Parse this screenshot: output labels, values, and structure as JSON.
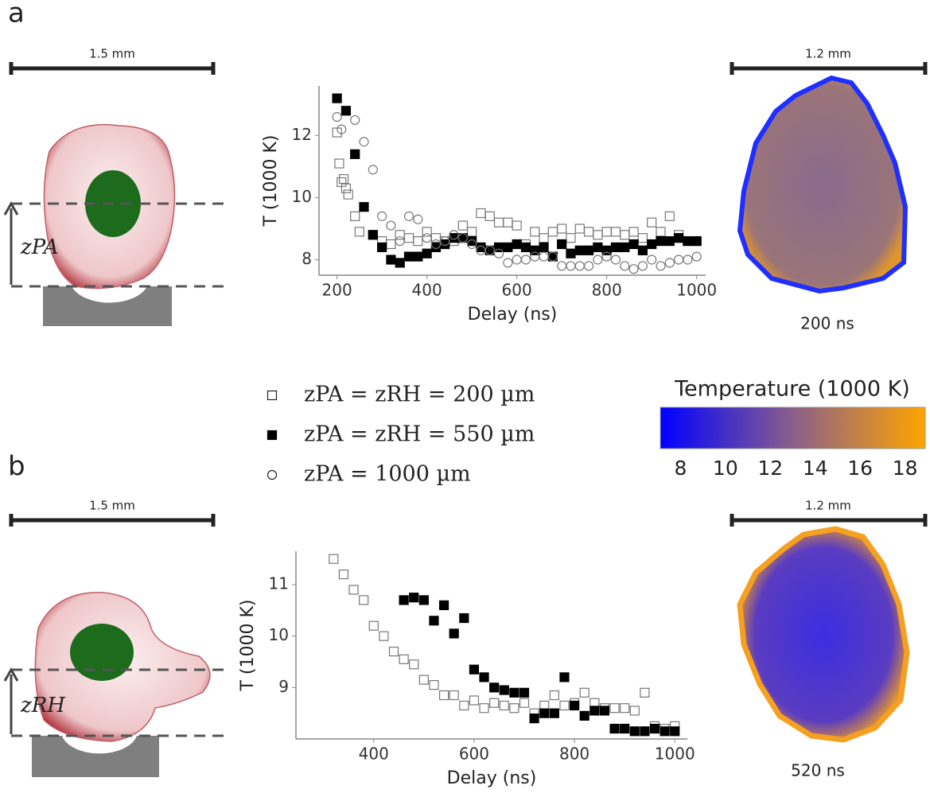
{
  "panels": [
    {
      "label": "a",
      "scale_bar": "1.5 mm",
      "height_label": "zPA",
      "map_scale_bar": "1.2 mm",
      "map_time": "200 ns"
    },
    {
      "label": "b",
      "scale_bar": "1.5 mm",
      "height_label": "zRH",
      "map_scale_bar": "1.2 mm",
      "map_time": "520 ns"
    }
  ],
  "colorbar": {
    "title": "Temperature (1000 K)",
    "lim": [
      7.1,
      18.9
    ],
    "ticks": [
      8,
      10,
      12,
      14,
      16,
      18
    ],
    "colors": [
      "#0000ff",
      "#8a5f8a",
      "#ffa500"
    ]
  },
  "chart_data": [
    {
      "type": "scatter",
      "xlabel": "Delay (ns)",
      "ylabel": "T (1000 K)",
      "xlim": [
        160,
        1020
      ],
      "ylim": [
        7.5,
        13.6
      ],
      "xticks": [
        200,
        400,
        600,
        800,
        1000
      ],
      "yticks": [
        8,
        10,
        12
      ],
      "series": [
        {
          "name": "zPA = zRH = 200 µm",
          "marker": "square-open",
          "color": "#777777",
          "x": [
            200,
            205,
            210,
            215,
            220,
            225,
            240,
            250,
            280,
            300,
            320,
            340,
            360,
            380,
            400,
            420,
            440,
            460,
            480,
            500,
            520,
            540,
            560,
            580,
            600,
            620,
            640,
            660,
            680,
            700,
            720,
            740,
            760,
            780,
            800,
            820,
            840,
            860,
            880,
            900,
            920,
            940,
            960,
            980,
            1000
          ],
          "values": [
            12.1,
            11.1,
            10.5,
            10.6,
            10.3,
            10.1,
            9.4,
            8.9,
            8.8,
            8.6,
            8.5,
            8.8,
            8.7,
            8.6,
            8.9,
            8.7,
            8.6,
            8.6,
            9.1,
            8.9,
            9.5,
            9.4,
            9.2,
            9.2,
            9.1,
            8.5,
            8.9,
            8.7,
            8.9,
            9.0,
            8.7,
            9.0,
            8.9,
            8.8,
            8.9,
            8.9,
            8.8,
            8.9,
            8.7,
            9.2,
            8.9,
            9.4,
            8.8,
            8.6,
            8.6
          ]
        },
        {
          "name": "zPA = zRH = 550 µm",
          "marker": "square-filled",
          "color": "#000000",
          "x": [
            200,
            220,
            240,
            260,
            280,
            300,
            320,
            340,
            360,
            380,
            400,
            420,
            440,
            460,
            480,
            500,
            520,
            540,
            560,
            580,
            600,
            620,
            640,
            660,
            680,
            700,
            720,
            740,
            760,
            780,
            800,
            820,
            840,
            860,
            880,
            900,
            920,
            940,
            960,
            980,
            1000
          ],
          "values": [
            13.2,
            12.8,
            11.4,
            9.7,
            8.8,
            8.4,
            8.0,
            7.9,
            8.1,
            8.1,
            8.2,
            8.4,
            8.5,
            8.7,
            8.7,
            8.6,
            8.4,
            8.3,
            8.4,
            8.4,
            8.5,
            8.4,
            8.3,
            8.4,
            8.1,
            8.5,
            8.2,
            8.3,
            8.3,
            8.4,
            8.3,
            8.4,
            8.4,
            8.5,
            8.3,
            8.5,
            8.6,
            8.6,
            8.7,
            8.6,
            8.6
          ]
        },
        {
          "name": "zPA = 1000 µm",
          "marker": "circle-open",
          "color": "#777777",
          "x": [
            200,
            210,
            240,
            260,
            280,
            300,
            320,
            340,
            360,
            380,
            400,
            420,
            440,
            460,
            480,
            500,
            520,
            540,
            560,
            580,
            600,
            620,
            640,
            660,
            680,
            700,
            720,
            740,
            760,
            780,
            800,
            820,
            840,
            860,
            880,
            900,
            920,
            940,
            960,
            980,
            1000
          ],
          "values": [
            12.6,
            12.2,
            12.5,
            11.8,
            10.9,
            9.4,
            9.1,
            8.6,
            9.4,
            9.3,
            8.7,
            8.5,
            8.6,
            8.8,
            8.7,
            8.5,
            8.3,
            8.3,
            8.2,
            7.9,
            8.0,
            8.0,
            8.1,
            8.1,
            8.1,
            7.8,
            7.8,
            7.8,
            7.8,
            8.0,
            8.1,
            8.0,
            7.8,
            7.7,
            7.8,
            8.0,
            7.8,
            7.9,
            8.0,
            8.0,
            8.1
          ]
        }
      ]
    },
    {
      "type": "scatter",
      "xlabel": "Delay (ns)",
      "ylabel": "T (1000 K)",
      "xlim": [
        245,
        1025
      ],
      "ylim": [
        8.0,
        11.65
      ],
      "xticks": [
        400,
        600,
        800,
        1000
      ],
      "yticks": [
        9,
        10,
        11
      ],
      "series": [
        {
          "marker": "square-open",
          "color": "#777777",
          "x": [
            320,
            340,
            360,
            380,
            400,
            420,
            440,
            460,
            480,
            500,
            520,
            540,
            560,
            580,
            600,
            620,
            640,
            660,
            680,
            700,
            720,
            740,
            760,
            780,
            800,
            820,
            840,
            860,
            880,
            900,
            920,
            940,
            960,
            980,
            1000
          ],
          "values": [
            11.5,
            11.2,
            10.9,
            10.7,
            10.2,
            10.0,
            9.7,
            9.55,
            9.45,
            9.15,
            9.05,
            8.85,
            8.85,
            8.65,
            8.75,
            8.6,
            8.7,
            8.65,
            8.6,
            8.7,
            8.5,
            8.65,
            8.85,
            8.65,
            8.7,
            8.9,
            8.7,
            8.6,
            8.6,
            8.6,
            8.55,
            8.9,
            8.25,
            8.2,
            8.25
          ]
        },
        {
          "marker": "square-filled",
          "color": "#000000",
          "x": [
            460,
            480,
            500,
            520,
            540,
            560,
            580,
            600,
            620,
            640,
            660,
            680,
            700,
            720,
            740,
            760,
            780,
            800,
            820,
            840,
            860,
            880,
            900,
            920,
            940,
            960,
            980,
            1000
          ],
          "values": [
            10.7,
            10.75,
            10.7,
            10.3,
            10.6,
            10.05,
            10.35,
            9.35,
            9.2,
            9.0,
            8.95,
            8.9,
            8.9,
            8.4,
            8.5,
            8.5,
            9.2,
            8.65,
            8.45,
            8.55,
            8.55,
            8.2,
            8.2,
            8.15,
            8.15,
            8.2,
            8.15,
            8.15
          ]
        }
      ]
    }
  ]
}
